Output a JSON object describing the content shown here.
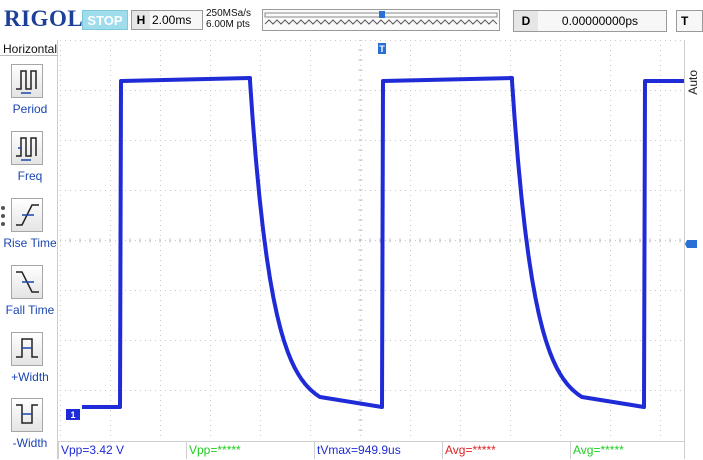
{
  "header": {
    "brand": "RIGOL",
    "run_state": "STOP",
    "horizontal_key": "H",
    "timebase": "2.00ms",
    "sample_rate": "250MSa/s",
    "memory_depth": "6.00M pts",
    "delay_key": "D",
    "delay_value": "0.00000000ps",
    "trigger_key": "T"
  },
  "sidebar": {
    "title": "Horizontal",
    "items": [
      {
        "label": "Period",
        "icon": "period-icon"
      },
      {
        "label": "Freq",
        "icon": "frequency-icon"
      },
      {
        "label": "Rise Time",
        "icon": "rise-time-icon"
      },
      {
        "label": "Fall Time",
        "icon": "fall-time-icon"
      },
      {
        "label": "+Width",
        "icon": "positive-width-icon"
      },
      {
        "label": "-Width",
        "icon": "negative-width-icon"
      }
    ]
  },
  "right_panel": {
    "auto_label": "Auto"
  },
  "waveform": {
    "channel_marker": "1",
    "channel_color": "#1f2bd6",
    "trigger_marker": "T"
  },
  "measurements": [
    {
      "text": "Vpp=3.42 V",
      "color": "#1f2bd6"
    },
    {
      "text": "Vpp=*****",
      "color": "#22cc22"
    },
    {
      "text": "tVmax=949.9us",
      "color": "#1f2bd6"
    },
    {
      "text": "Avg=*****",
      "color": "#dd2222"
    },
    {
      "text": "Avg=*****",
      "color": "#22cc22"
    }
  ]
}
